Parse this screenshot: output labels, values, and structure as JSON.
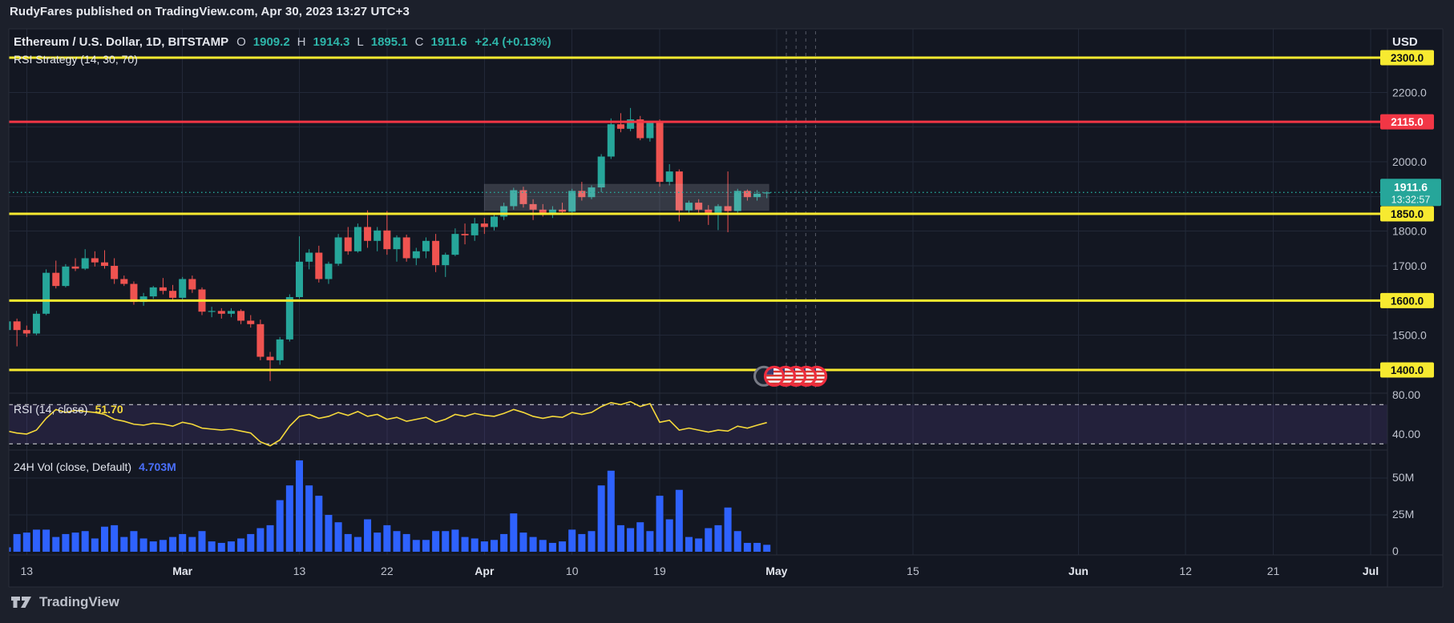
{
  "header": {
    "attribution": "RudyFares published on TradingView.com, Apr 30, 2023 13:27 UTC+3"
  },
  "legend": {
    "symbol": "Ethereum / U.S. Dollar, 1D, BITSTAMP",
    "ohlc": [
      {
        "k": "O",
        "v": "1909.2"
      },
      {
        "k": "H",
        "v": "1914.3"
      },
      {
        "k": "L",
        "v": "1895.1"
      },
      {
        "k": "C",
        "v": "1911.6"
      }
    ],
    "change": "+2.4 (+0.13%)",
    "strategy": "RSI Strategy (14, 30, 70)"
  },
  "panes": {
    "rsi": {
      "label": "RSI (14, close)",
      "value": "51.70"
    },
    "volume": {
      "label": "24H Vol (close, Default)",
      "value": "4.703M"
    }
  },
  "axis": {
    "currency": "USD",
    "price_ticks": [
      {
        "text": "2200.0",
        "price": 2200
      },
      {
        "text": "2000.0",
        "price": 2000
      },
      {
        "text": "1800.0",
        "price": 1800
      },
      {
        "text": "1700.0",
        "price": 1700
      },
      {
        "text": "1500.0",
        "price": 1500
      }
    ],
    "rsi_ticks": [
      {
        "text": "80.00",
        "value": 80
      },
      {
        "text": "40.00",
        "value": 40
      }
    ],
    "vol_ticks": [
      {
        "text": "50M",
        "value": 50
      },
      {
        "text": "25M",
        "value": 25
      },
      {
        "text": "0",
        "value": 0
      }
    ]
  },
  "footer": {
    "brand": "TradingView"
  },
  "colors": {
    "background": "#131722",
    "frame": "#2A2E39",
    "grid": "#222838",
    "up": "#26A69A",
    "down": "#EF5350",
    "volume": "#2E62FE",
    "rsi_line": "#F5D93B",
    "band": "#7E57C2",
    "yellow": "#F7EA30",
    "red": "#F23645",
    "current": "#26A69A",
    "axis_text": "#BFC3CE"
  },
  "chart_data": {
    "type": "candlestick",
    "title": "Ethereum / U.S. Dollar, 1D, BITSTAMP",
    "symbol": "ETH/USD",
    "interval": "1D",
    "exchange": "BITSTAMP",
    "start_date": "2023-02-11",
    "x_domain": "2023-02-11 to 2023-07-01",
    "ylim": [
      1333,
      2383
    ],
    "rsi_ylim": [
      24,
      82
    ],
    "volume_ylim_millions": [
      0,
      68
    ],
    "ohlc": [
      [
        1515,
        1545,
        1505,
        1540
      ],
      [
        1540,
        1548,
        1468,
        1515
      ],
      [
        1515,
        1528,
        1495,
        1505
      ],
      [
        1505,
        1570,
        1500,
        1562
      ],
      [
        1562,
        1690,
        1558,
        1680
      ],
      [
        1680,
        1715,
        1635,
        1642
      ],
      [
        1642,
        1705,
        1638,
        1698
      ],
      [
        1698,
        1722,
        1685,
        1692
      ],
      [
        1692,
        1748,
        1688,
        1722
      ],
      [
        1722,
        1742,
        1698,
        1710
      ],
      [
        1710,
        1745,
        1692,
        1700
      ],
      [
        1700,
        1722,
        1648,
        1662
      ],
      [
        1662,
        1672,
        1642,
        1648
      ],
      [
        1648,
        1655,
        1588,
        1596
      ],
      [
        1596,
        1622,
        1585,
        1612
      ],
      [
        1612,
        1642,
        1605,
        1638
      ],
      [
        1638,
        1665,
        1618,
        1628
      ],
      [
        1628,
        1645,
        1598,
        1608
      ],
      [
        1608,
        1668,
        1602,
        1662
      ],
      [
        1662,
        1672,
        1622,
        1632
      ],
      [
        1632,
        1638,
        1558,
        1568
      ],
      [
        1568,
        1582,
        1552,
        1570
      ],
      [
        1570,
        1578,
        1548,
        1562
      ],
      [
        1562,
        1578,
        1552,
        1570
      ],
      [
        1570,
        1575,
        1532,
        1542
      ],
      [
        1542,
        1558,
        1522,
        1532
      ],
      [
        1532,
        1545,
        1428,
        1438
      ],
      [
        1438,
        1452,
        1368,
        1428
      ],
      [
        1428,
        1495,
        1415,
        1488
      ],
      [
        1488,
        1618,
        1482,
        1610
      ],
      [
        1610,
        1785,
        1605,
        1712
      ],
      [
        1712,
        1748,
        1690,
        1738
      ],
      [
        1738,
        1758,
        1652,
        1662
      ],
      [
        1662,
        1712,
        1648,
        1706
      ],
      [
        1706,
        1792,
        1700,
        1782
      ],
      [
        1782,
        1812,
        1732,
        1742
      ],
      [
        1742,
        1822,
        1738,
        1812
      ],
      [
        1812,
        1860,
        1752,
        1772
      ],
      [
        1772,
        1812,
        1742,
        1802
      ],
      [
        1802,
        1858,
        1732,
        1748
      ],
      [
        1748,
        1788,
        1712,
        1782
      ],
      [
        1782,
        1790,
        1712,
        1722
      ],
      [
        1722,
        1752,
        1702,
        1742
      ],
      [
        1742,
        1782,
        1722,
        1772
      ],
      [
        1772,
        1792,
        1682,
        1702
      ],
      [
        1702,
        1738,
        1668,
        1732
      ],
      [
        1732,
        1808,
        1728,
        1792
      ],
      [
        1792,
        1822,
        1762,
        1788
      ],
      [
        1788,
        1838,
        1772,
        1822
      ],
      [
        1822,
        1838,
        1792,
        1812
      ],
      [
        1812,
        1848,
        1802,
        1842
      ],
      [
        1842,
        1882,
        1832,
        1872
      ],
      [
        1872,
        1925,
        1862,
        1918
      ],
      [
        1918,
        1928,
        1868,
        1878
      ],
      [
        1878,
        1892,
        1832,
        1862
      ],
      [
        1862,
        1878,
        1842,
        1852
      ],
      [
        1852,
        1872,
        1838,
        1862
      ],
      [
        1862,
        1882,
        1848,
        1856
      ],
      [
        1856,
        1922,
        1846,
        1916
      ],
      [
        1916,
        1942,
        1888,
        1898
      ],
      [
        1898,
        1932,
        1892,
        1926
      ],
      [
        1926,
        2022,
        1912,
        2015
      ],
      [
        2015,
        2125,
        2008,
        2108
      ],
      [
        2108,
        2140,
        2085,
        2095
      ],
      [
        2095,
        2155,
        2088,
        2122
      ],
      [
        2122,
        2132,
        2062,
        2068
      ],
      [
        2068,
        2118,
        2058,
        2112
      ],
      [
        2112,
        2122,
        1928,
        1942
      ],
      [
        1942,
        1993,
        1932,
        1972
      ],
      [
        1972,
        1978,
        1828,
        1860
      ],
      [
        1860,
        1888,
        1852,
        1882
      ],
      [
        1882,
        1892,
        1852,
        1862
      ],
      [
        1862,
        1875,
        1818,
        1848
      ],
      [
        1848,
        1878,
        1803,
        1872
      ],
      [
        1872,
        1972,
        1797,
        1858
      ],
      [
        1858,
        1922,
        1852,
        1916
      ],
      [
        1916,
        1920,
        1888,
        1898
      ],
      [
        1898,
        1918,
        1888,
        1908
      ],
      [
        1909.2,
        1914.3,
        1895.1,
        1911.6
      ]
    ],
    "volume": [
      3,
      12,
      13,
      15,
      15,
      10,
      12,
      13,
      14,
      9,
      17,
      18,
      10,
      14,
      9,
      7,
      8,
      10,
      12,
      10,
      14,
      7,
      6,
      7,
      9,
      12,
      16,
      18,
      35,
      45,
      62,
      45,
      38,
      25,
      20,
      12,
      10,
      22,
      13,
      18,
      14,
      12,
      8,
      8,
      14,
      14,
      15,
      10,
      9,
      7,
      8,
      12,
      26,
      13,
      10,
      8,
      6,
      7,
      15,
      12,
      14,
      45,
      55,
      18,
      16,
      20,
      14,
      38,
      22,
      42,
      10,
      9,
      16,
      18,
      30,
      14,
      6,
      6,
      4.703
    ],
    "rsi": [
      43,
      41,
      40,
      44,
      56,
      65,
      62,
      64,
      63,
      62,
      60,
      55,
      53,
      50,
      49,
      51,
      50,
      48,
      52,
      50,
      46,
      45,
      44,
      45,
      43,
      41,
      32,
      28,
      34,
      48,
      58,
      60,
      56,
      58,
      62,
      59,
      63,
      58,
      60,
      55,
      57,
      53,
      55,
      57,
      52,
      55,
      60,
      58,
      61,
      59,
      58,
      61,
      65,
      62,
      58,
      56,
      58,
      57,
      62,
      60,
      62,
      68,
      72,
      70,
      73,
      68,
      71,
      52,
      54,
      44,
      46,
      44,
      42,
      44,
      43,
      48,
      46,
      49,
      51.7
    ],
    "rsi_band": [
      30,
      70
    ],
    "levels": [
      {
        "price": 2300,
        "label": "2300.0",
        "line": "#F7EA30",
        "text": "#0B0E15"
      },
      {
        "price": 2115,
        "label": "2115.0",
        "line": "#F23645",
        "text": "#FFFFFF"
      },
      {
        "price": 1850,
        "label": "1850.0",
        "line": "#F7EA30",
        "text": "#0B0E15"
      },
      {
        "price": 1600,
        "label": "1600.0",
        "line": "#F7EA30",
        "text": "#0B0E15"
      },
      {
        "price": 1400,
        "label": "1400.0",
        "line": "#F7EA30",
        "text": "#0B0E15"
      }
    ],
    "current_price": {
      "label": "1911.6",
      "countdown": "13:32:57",
      "value": 1911.6,
      "bg": "#26A69A"
    },
    "highlight_box": {
      "from_index": 49,
      "to_index": 78.2,
      "top_price": 1935,
      "bottom_price": 1860
    },
    "event_line_indices": [
      80,
      81,
      82,
      83
    ],
    "event_flags": {
      "type": "us-flag",
      "red_count": 5,
      "gray_count": 1,
      "anchor_price": 1382
    },
    "time_ticks": [
      {
        "label": "13",
        "index": 2,
        "month": false
      },
      {
        "label": "Mar",
        "index": 18,
        "month": true
      },
      {
        "label": "13",
        "index": 30,
        "month": false
      },
      {
        "label": "22",
        "index": 39,
        "month": false
      },
      {
        "label": "Apr",
        "index": 49,
        "month": true
      },
      {
        "label": "10",
        "index": 58,
        "month": false
      },
      {
        "label": "19",
        "index": 67,
        "month": false
      },
      {
        "label": "May",
        "index": 79,
        "month": true
      },
      {
        "label": "15",
        "index": 93,
        "month": false
      },
      {
        "label": "Jun",
        "index": 110,
        "month": true
      },
      {
        "label": "12",
        "index": 121,
        "month": false
      },
      {
        "label": "21",
        "index": 130,
        "month": false
      },
      {
        "label": "Jul",
        "index": 140,
        "month": true
      }
    ]
  }
}
